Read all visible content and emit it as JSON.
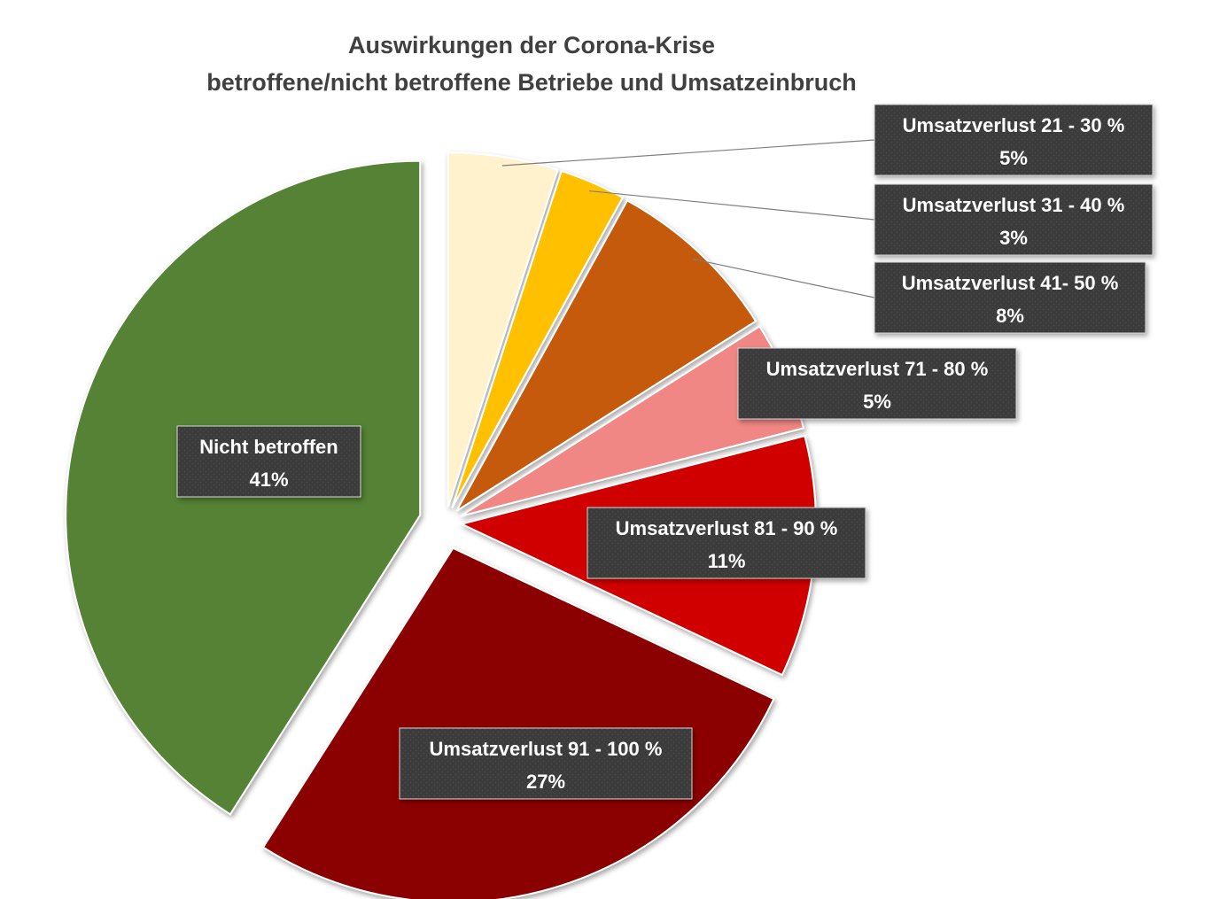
{
  "chart_data": {
    "type": "pie",
    "title": "Auswirkungen der Corona-Krise",
    "subtitle": "betroffene/nicht betroffene Betriebe und Umsatzeinbruch",
    "slices": [
      {
        "label": "Umsatzverlust 21 - 30 %",
        "value": 5,
        "value_label": "5%",
        "color": "#fff2cc"
      },
      {
        "label": "Umsatzverlust 31 - 40 %",
        "value": 3,
        "value_label": "3%",
        "color": "#ffc000"
      },
      {
        "label": "Umsatzverlust 41- 50 %",
        "value": 8,
        "value_label": "8%",
        "color": "#c55a11"
      },
      {
        "label": "Umsatzverlust 71 - 80 %",
        "value": 5,
        "value_label": "5%",
        "color": "#f08784"
      },
      {
        "label": "Umsatzverlust 81 - 90 %",
        "value": 11,
        "value_label": "11%",
        "color": "#d00000"
      },
      {
        "label": "Umsatzverlust 91 - 100 %",
        "value": 27,
        "value_label": "27%",
        "color": "#8b0000"
      },
      {
        "label": "Nicht betroffen",
        "value": 41,
        "value_label": "41%",
        "color": "#548235"
      }
    ],
    "start_angle_deg": 0,
    "direction": "clockwise",
    "exploded": true,
    "data_labels": "category and percentage",
    "legend": "none"
  }
}
